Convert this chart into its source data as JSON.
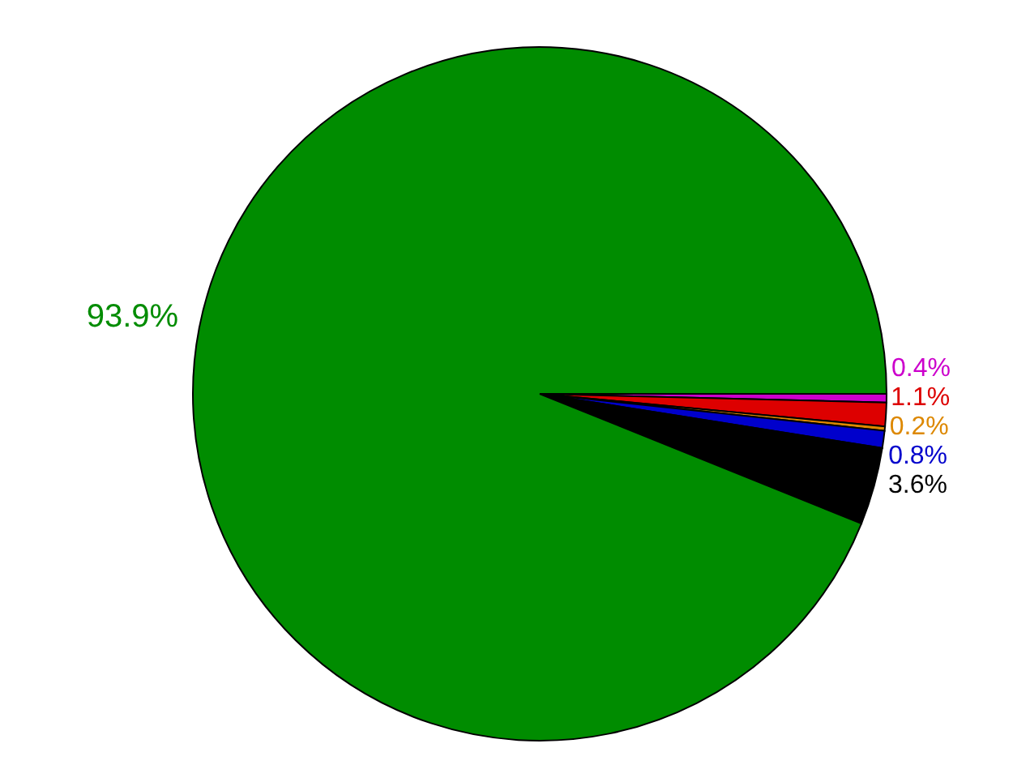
{
  "chart_data": {
    "type": "pie",
    "categories": [
      null,
      null,
      null,
      null,
      null,
      null
    ],
    "values": [
      0.4,
      1.1,
      0.2,
      0.8,
      3.6,
      93.9
    ],
    "colors": [
      "#cc00cc",
      "#dd0000",
      "#dd8800",
      "#0000cc",
      "#000000",
      "#008c00"
    ],
    "value_labels": [
      "0.4%",
      "1.1%",
      "0.2%",
      "0.8%",
      "3.6%",
      "93.9%"
    ],
    "legend": false
  }
}
